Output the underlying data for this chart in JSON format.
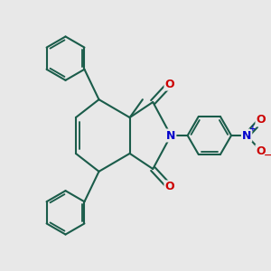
{
  "background_color": "#e8e8e8",
  "bond_color": "#1a5c4a",
  "atom_colors": {
    "O": "#cc0000",
    "N": "#0000cc",
    "plus": "#0000cc",
    "minus": "#cc0000"
  },
  "bond_width": 1.5,
  "figsize": [
    3.0,
    3.0
  ],
  "dpi": 100
}
